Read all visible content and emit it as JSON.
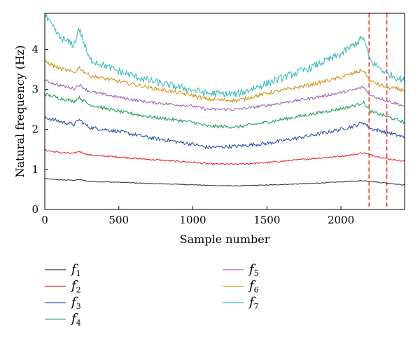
{
  "chart_data": {
    "type": "line",
    "xlabel": "Sample number",
    "ylabel": "Natural frequency (Hz)",
    "xlim": [
      0,
      2430
    ],
    "ylim": [
      0,
      4.9
    ],
    "xticks": [
      0,
      500,
      1000,
      1500,
      2000
    ],
    "yticks": [
      0,
      1,
      2,
      3,
      4
    ],
    "grid": false,
    "legend_position": "below-plot",
    "vlines": {
      "x": [
        2190,
        2310
      ],
      "style": "dashed",
      "color": "#e8302a"
    },
    "anchor_x": [
      0,
      100,
      200,
      230,
      300,
      500,
      700,
      1000,
      1100,
      1300,
      1500,
      1800,
      2000,
      2100,
      2150,
      2200,
      2310,
      2430
    ],
    "series": [
      {
        "name": "f",
        "sub": "1",
        "color": "#3a3a3a",
        "noise": 0.01,
        "anchors": [
          0.77,
          0.74,
          0.73,
          0.75,
          0.7,
          0.68,
          0.65,
          0.62,
          0.6,
          0.59,
          0.61,
          0.65,
          0.69,
          0.71,
          0.72,
          0.7,
          0.66,
          0.61
        ]
      },
      {
        "name": "f",
        "sub": "2",
        "color": "#e8302a",
        "noise": 0.02,
        "anchors": [
          1.48,
          1.42,
          1.4,
          1.45,
          1.36,
          1.31,
          1.25,
          1.18,
          1.14,
          1.13,
          1.17,
          1.27,
          1.33,
          1.38,
          1.42,
          1.36,
          1.27,
          1.2
        ]
      },
      {
        "name": "f",
        "sub": "3",
        "color": "#2a57a8",
        "noise": 0.045,
        "anchors": [
          2.3,
          2.2,
          2.12,
          2.25,
          2.05,
          1.95,
          1.8,
          1.63,
          1.55,
          1.58,
          1.65,
          1.85,
          2.0,
          2.1,
          2.18,
          2.02,
          1.93,
          1.8
        ]
      },
      {
        "name": "f",
        "sub": "4",
        "color": "#27a060",
        "noise": 0.04,
        "anchors": [
          2.88,
          2.78,
          2.7,
          2.8,
          2.62,
          2.45,
          2.32,
          2.18,
          2.08,
          2.06,
          2.18,
          2.38,
          2.52,
          2.6,
          2.68,
          2.45,
          2.32,
          2.18
        ]
      },
      {
        "name": "f",
        "sub": "5",
        "color": "#a063c0",
        "noise": 0.035,
        "anchors": [
          3.22,
          3.1,
          3.02,
          3.12,
          2.95,
          2.8,
          2.68,
          2.58,
          2.5,
          2.5,
          2.6,
          2.78,
          2.92,
          3.0,
          3.06,
          2.85,
          2.72,
          2.58
        ]
      },
      {
        "name": "f",
        "sub": "6",
        "color": "#d4941a",
        "noise": 0.045,
        "anchors": [
          3.7,
          3.52,
          3.42,
          3.55,
          3.35,
          3.2,
          3.05,
          2.85,
          2.75,
          2.72,
          2.9,
          3.12,
          3.3,
          3.42,
          3.48,
          3.2,
          3.05,
          2.98
        ]
      },
      {
        "name": "f",
        "sub": "7",
        "color": "#3bbcbc",
        "noise": 0.09,
        "anchors": [
          4.85,
          4.3,
          4.1,
          4.55,
          3.75,
          3.45,
          3.22,
          2.98,
          2.9,
          2.88,
          3.15,
          3.55,
          3.88,
          4.15,
          4.3,
          3.7,
          3.4,
          3.22
        ]
      }
    ]
  }
}
